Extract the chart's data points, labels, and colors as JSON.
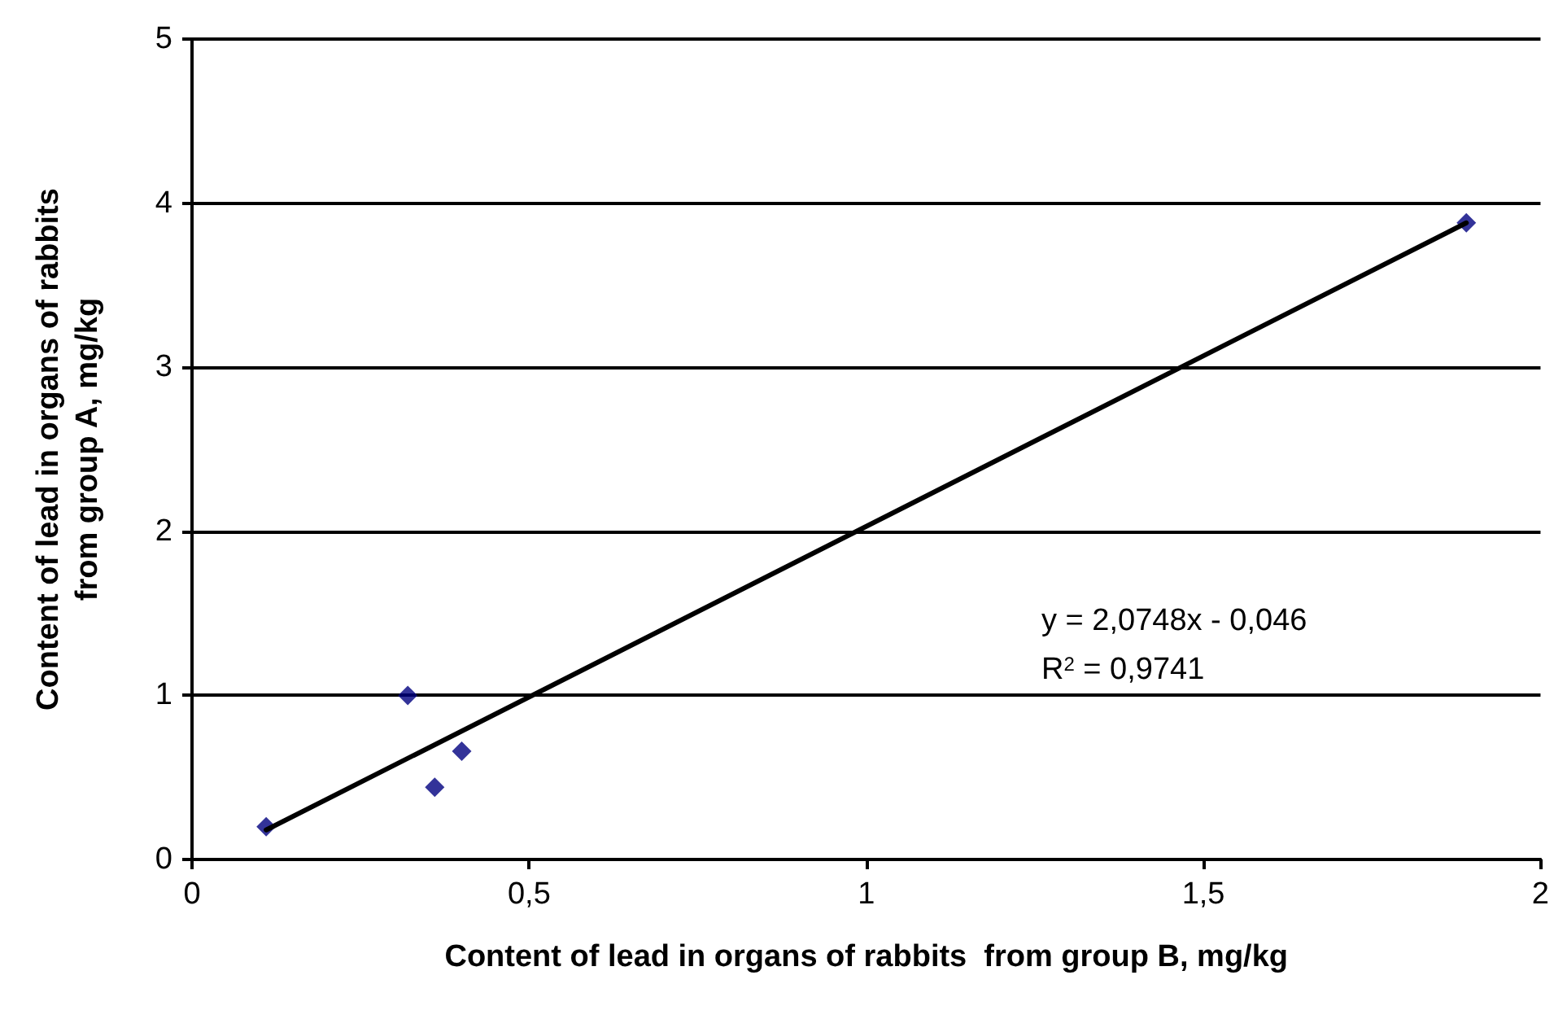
{
  "chart_data": {
    "type": "scatter",
    "xlabel": "Content of lead in organs of rabbits  from group B, mg/kg",
    "ylabel": "Content of lead in organs of rabbits\nfrom group A, mg/kg",
    "x": [
      0.11,
      0.32,
      0.36,
      0.4,
      1.89
    ],
    "series": [
      {
        "color": "#000080",
        "values": [
          0.2,
          1.0,
          0.44,
          0.66,
          3.88
        ],
        "marker": "diamond"
      },
      {
        "type": "line",
        "color": "#000000",
        "x": [
          0.11,
          1.89
        ],
        "values": [
          0.18,
          3.88
        ],
        "marker": "none"
      }
    ],
    "xlim": [
      0,
      2
    ],
    "xticks": [
      0,
      {
        "value": 0.5,
        "label": "0,5"
      },
      1,
      {
        "value": 1.5,
        "label": "1,5"
      },
      2
    ],
    "ylim": [
      0,
      5
    ],
    "yticks": [
      0,
      1,
      2,
      3,
      4,
      5
    ],
    "grid": "y",
    "annotations": [
      "y = 2,0748x - 0,046",
      "R$^{2}$ = 0,9741"
    ]
  }
}
